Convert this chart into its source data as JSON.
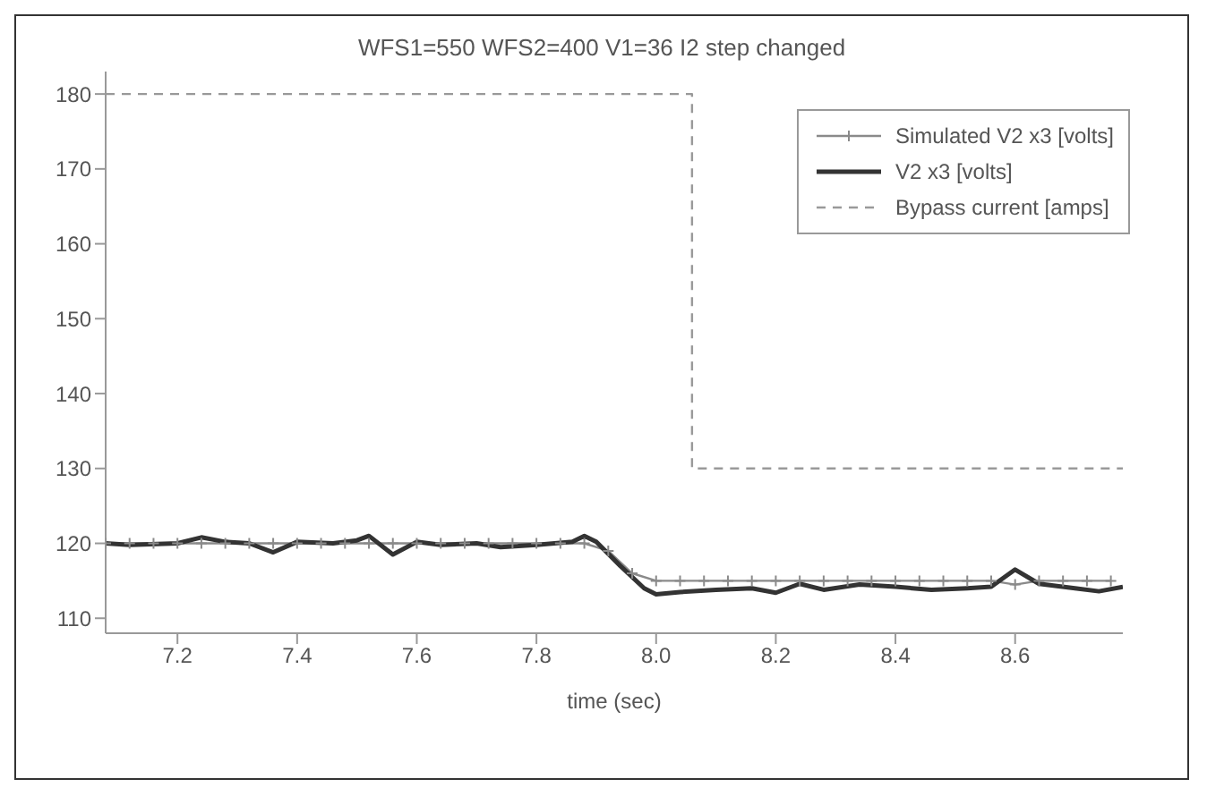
{
  "chart_data": {
    "type": "line",
    "title": "WFS1=550 WFS2=400 V1=36 I2 step changed",
    "xlabel": "time (sec)",
    "xlim": [
      7.08,
      8.78
    ],
    "xticks": [
      7.2,
      7.4,
      7.6,
      7.8,
      {
        "value": 8,
        "label": "8.0"
      },
      8.2,
      8.4,
      8.6
    ],
    "ylim": [
      108,
      183
    ],
    "yticks": [
      110,
      120,
      130,
      140,
      150,
      160,
      170,
      180
    ],
    "legend": "top right",
    "series": [
      {
        "name": "Simulated V2 x3 [volts]",
        "color": "#8a8a8a",
        "marker": "cross",
        "line_style": "solid",
        "x": [
          7.08,
          7.12,
          7.16,
          7.2,
          7.24,
          7.28,
          7.32,
          7.36,
          7.4,
          7.44,
          7.48,
          7.52,
          7.56,
          7.6,
          7.64,
          7.68,
          7.72,
          7.76,
          7.8,
          7.84,
          7.88,
          7.92,
          7.96,
          8.0,
          8.04,
          8.08,
          8.12,
          8.16,
          8.2,
          8.24,
          8.28,
          8.32,
          8.36,
          8.4,
          8.44,
          8.48,
          8.52,
          8.56,
          8.6,
          8.64,
          8.68,
          8.72,
          8.76
        ],
        "values": [
          120,
          120,
          120,
          120,
          120,
          120,
          120,
          120,
          120,
          120,
          120,
          120,
          120,
          120,
          120,
          120,
          120,
          120,
          120,
          120,
          120,
          119,
          116,
          115,
          115,
          115,
          115,
          115,
          115,
          115,
          115,
          115,
          115,
          115,
          115,
          115,
          115,
          115,
          114.5,
          115,
          115,
          115,
          115
        ]
      },
      {
        "name": "V2 x3 [volts]",
        "color": "#333333",
        "marker": "none",
        "line_style": "solid",
        "x": [
          7.08,
          7.12,
          7.2,
          7.24,
          7.28,
          7.32,
          7.36,
          7.4,
          7.46,
          7.5,
          7.52,
          7.56,
          7.6,
          7.64,
          7.7,
          7.74,
          7.8,
          7.86,
          7.88,
          7.9,
          7.94,
          7.98,
          8.0,
          8.04,
          8.1,
          8.16,
          8.2,
          8.24,
          8.28,
          8.34,
          8.4,
          8.46,
          8.52,
          8.56,
          8.6,
          8.64,
          8.7,
          8.74,
          8.78
        ],
        "values": [
          120,
          119.8,
          120,
          120.8,
          120.2,
          120,
          118.8,
          120.2,
          120,
          120.4,
          121,
          118.5,
          120.2,
          119.8,
          120,
          119.5,
          119.8,
          120.2,
          121,
          120.2,
          117,
          114,
          113.2,
          113.5,
          113.8,
          114,
          113.4,
          114.6,
          113.8,
          114.5,
          114.2,
          113.8,
          114,
          114.2,
          116.5,
          114.6,
          114,
          113.6,
          114.2
        ]
      },
      {
        "name": "Bypass current [amps]",
        "color": "#999999",
        "marker": "none",
        "line_style": "dashed",
        "x": [
          7.08,
          8.06,
          8.06,
          8.78
        ],
        "values": [
          180,
          180,
          130,
          130
        ]
      }
    ]
  }
}
